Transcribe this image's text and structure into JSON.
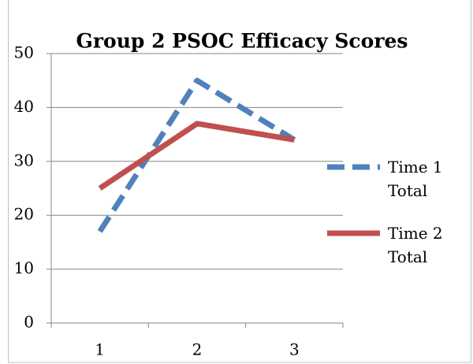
{
  "chart_data": {
    "type": "line",
    "title": "Group 2 PSOC Efficacy Scores",
    "categories": [
      "1",
      "2",
      "3"
    ],
    "series": [
      {
        "name": "Time 1 Total",
        "color": "#4f81bd",
        "dashed": true,
        "values": [
          17,
          45,
          34
        ]
      },
      {
        "name": "Time 2 Total",
        "color": "#c0504d",
        "dashed": false,
        "values": [
          25,
          37,
          34
        ]
      }
    ],
    "ylim": [
      0,
      50
    ],
    "yticks": [
      0,
      10,
      20,
      30,
      40,
      50
    ],
    "grid": true,
    "legend": "right"
  }
}
